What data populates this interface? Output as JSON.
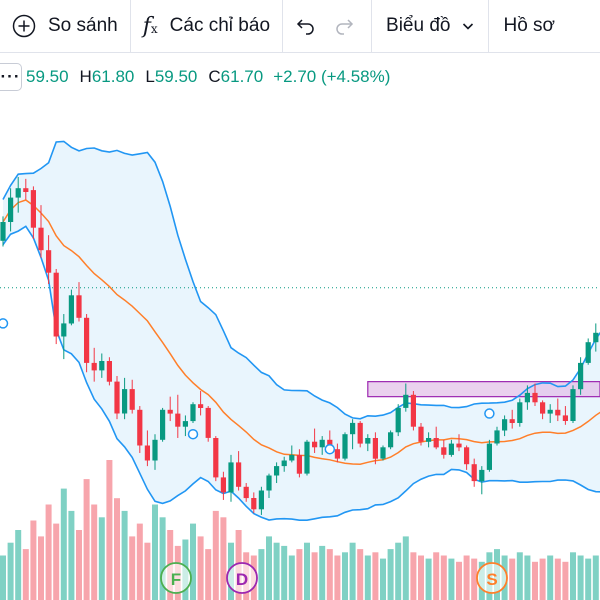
{
  "toolbar": {
    "compare_label": "So sánh",
    "indicators_label": "Các chỉ báo",
    "chart_type_label": "Biểu đồ",
    "profile_label": "Hồ sơ"
  },
  "legend": {
    "open_value": "59.50",
    "high_label": "H",
    "high_value": "61.80",
    "low_label": "L",
    "low_value": "59.50",
    "close_label": "C",
    "close_value": "61.70",
    "change": "+2.70 (+4.58%)"
  },
  "colors": {
    "up": "#089981",
    "down": "#f23645",
    "band_line": "#2196f3",
    "band_fill": "#e3f2fd",
    "basis_line": "#ff7f2a",
    "price_line": "#089981",
    "rectangle": "#9c27b0",
    "marker_green": "#4caf50",
    "marker_purple": "#9c27b0",
    "marker_orange": "#ff7f2a"
  },
  "chart_markers": [
    {
      "letter": "F",
      "color": "#4caf50"
    },
    {
      "letter": "D",
      "color": "#9c27b0"
    },
    {
      "letter": "S",
      "color": "#ff7f2a"
    }
  ],
  "chart_data": {
    "type": "candlestick",
    "price_line": 56.0,
    "highlight_zone": {
      "top": 51.0,
      "bottom": 50.2
    },
    "candles": [
      [
        58.5,
        59.8,
        58.2,
        59.5
      ],
      [
        59.5,
        61.3,
        59.0,
        60.8
      ],
      [
        60.8,
        61.9,
        60.0,
        61.3
      ],
      [
        61.3,
        61.8,
        60.7,
        61.1
      ],
      [
        61.2,
        61.4,
        58.6,
        59.2
      ],
      [
        59.2,
        60.4,
        57.6,
        58.0
      ],
      [
        58.0,
        58.8,
        56.2,
        56.8
      ],
      [
        56.8,
        57.0,
        53.0,
        53.4
      ],
      [
        53.4,
        54.6,
        52.2,
        54.1
      ],
      [
        54.1,
        55.9,
        54.0,
        55.6
      ],
      [
        55.6,
        56.3,
        54.2,
        54.4
      ],
      [
        54.4,
        54.6,
        51.5,
        52.0
      ],
      [
        52.0,
        52.8,
        51.0,
        51.6
      ],
      [
        51.6,
        52.5,
        51.2,
        52.1
      ],
      [
        52.1,
        52.3,
        50.8,
        51.0
      ],
      [
        51.0,
        51.3,
        49.0,
        49.3
      ],
      [
        49.3,
        51.2,
        49.0,
        50.6
      ],
      [
        50.6,
        51.1,
        49.3,
        49.5
      ],
      [
        49.5,
        49.7,
        47.2,
        47.6
      ],
      [
        47.6,
        48.4,
        46.5,
        46.8
      ],
      [
        46.8,
        48.2,
        46.3,
        47.9
      ],
      [
        47.9,
        49.6,
        47.8,
        49.5
      ],
      [
        49.5,
        50.2,
        48.9,
        49.3
      ],
      [
        49.3,
        50.3,
        48.0,
        48.6
      ],
      [
        48.6,
        49.2,
        48.1,
        48.9
      ],
      [
        48.9,
        49.9,
        48.8,
        49.8
      ],
      [
        49.8,
        50.5,
        49.2,
        49.6
      ],
      [
        49.6,
        49.7,
        47.8,
        48.0
      ],
      [
        48.0,
        48.1,
        45.7,
        45.9
      ],
      [
        45.9,
        46.2,
        44.7,
        45.1
      ],
      [
        45.1,
        47.1,
        44.6,
        46.7
      ],
      [
        46.7,
        47.3,
        45.2,
        45.4
      ],
      [
        45.4,
        45.6,
        44.6,
        44.8
      ],
      [
        44.8,
        45.1,
        44.0,
        44.2
      ],
      [
        44.2,
        45.4,
        43.9,
        45.2
      ],
      [
        45.2,
        46.1,
        44.8,
        46.0
      ],
      [
        46.0,
        46.7,
        45.6,
        46.5
      ],
      [
        46.5,
        47.0,
        46.2,
        46.8
      ],
      [
        46.8,
        47.6,
        46.7,
        47.1
      ],
      [
        47.1,
        47.4,
        45.9,
        46.1
      ],
      [
        46.1,
        47.9,
        46.0,
        47.8
      ],
      [
        47.8,
        48.5,
        47.2,
        47.5
      ],
      [
        47.5,
        48.1,
        47.1,
        47.9
      ],
      [
        47.9,
        48.4,
        47.2,
        47.4
      ],
      [
        47.4,
        47.7,
        46.7,
        46.9
      ],
      [
        46.9,
        48.3,
        46.8,
        48.2
      ],
      [
        48.2,
        49.0,
        47.4,
        48.8
      ],
      [
        48.8,
        48.9,
        47.5,
        47.7
      ],
      [
        47.7,
        48.2,
        47.3,
        48.0
      ],
      [
        48.0,
        48.3,
        46.6,
        46.9
      ],
      [
        46.9,
        47.6,
        46.8,
        47.5
      ],
      [
        47.5,
        48.4,
        47.4,
        48.3
      ],
      [
        48.3,
        49.8,
        48.1,
        49.6
      ],
      [
        49.6,
        50.9,
        49.4,
        50.3
      ],
      [
        50.3,
        50.5,
        48.4,
        48.6
      ],
      [
        48.6,
        48.8,
        47.6,
        47.8
      ],
      [
        47.8,
        48.3,
        47.5,
        48.0
      ],
      [
        48.0,
        48.6,
        47.4,
        47.5
      ],
      [
        47.5,
        47.9,
        46.9,
        47.1
      ],
      [
        47.1,
        47.9,
        47.0,
        47.7
      ],
      [
        47.7,
        48.2,
        47.3,
        47.5
      ],
      [
        47.5,
        47.6,
        46.3,
        46.6
      ],
      [
        46.6,
        46.9,
        45.4,
        45.7
      ],
      [
        45.7,
        46.5,
        45.0,
        46.3
      ],
      [
        46.3,
        47.9,
        46.2,
        47.7
      ],
      [
        47.7,
        48.6,
        47.6,
        48.4
      ],
      [
        48.4,
        49.2,
        48.1,
        49.0
      ],
      [
        49.0,
        49.5,
        48.5,
        48.8
      ],
      [
        48.8,
        50.1,
        48.6,
        49.9
      ],
      [
        49.9,
        50.8,
        49.5,
        50.4
      ],
      [
        50.4,
        50.9,
        49.7,
        49.9
      ],
      [
        49.9,
        50.0,
        49.0,
        49.3
      ],
      [
        49.3,
        49.8,
        48.8,
        49.5
      ],
      [
        49.5,
        50.1,
        48.9,
        49.2
      ],
      [
        49.2,
        49.7,
        48.7,
        48.9
      ],
      [
        48.9,
        50.8,
        48.8,
        50.6
      ],
      [
        50.6,
        52.3,
        50.3,
        52.0
      ],
      [
        52.0,
        53.3,
        51.9,
        53.1
      ],
      [
        53.1,
        54.1,
        52.6,
        53.6
      ],
      [
        53.6,
        54.3,
        52.9,
        53.2
      ]
    ],
    "volumes": [
      14,
      18,
      22,
      16,
      25,
      20,
      30,
      24,
      35,
      28,
      22,
      38,
      30,
      26,
      44,
      32,
      28,
      20,
      24,
      18,
      30,
      26,
      22,
      17,
      19,
      24,
      20,
      16,
      28,
      26,
      18,
      22,
      15,
      14,
      16,
      20,
      18,
      17,
      14,
      16,
      18,
      15,
      17,
      16,
      14,
      15,
      18,
      16,
      14,
      15,
      13,
      16,
      18,
      20,
      15,
      14,
      13,
      15,
      14,
      13,
      12,
      14,
      13,
      12,
      15,
      16,
      14,
      13,
      15,
      14,
      12,
      13,
      14,
      13,
      12,
      15,
      14,
      13,
      14,
      13
    ]
  }
}
